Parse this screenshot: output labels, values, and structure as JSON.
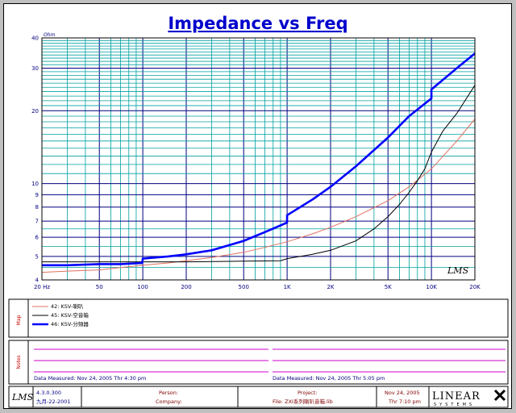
{
  "chart_data": {
    "type": "line",
    "title": "Impedance vs Freq",
    "y_unit": "Ohm",
    "x_scale": "log",
    "y_scale": "log",
    "xlim": [
      20,
      20000
    ],
    "ylim": [
      4,
      40
    ],
    "x_ticks": [
      {
        "v": 20,
        "label": "20 Hz"
      },
      {
        "v": 50,
        "label": "50"
      },
      {
        "v": 100,
        "label": "100"
      },
      {
        "v": 200,
        "label": "200"
      },
      {
        "v": 500,
        "label": "500"
      },
      {
        "v": 1000,
        "label": "1K"
      },
      {
        "v": 2000,
        "label": "2K"
      },
      {
        "v": 5000,
        "label": "5K"
      },
      {
        "v": 10000,
        "label": "10K"
      },
      {
        "v": 20000,
        "label": "20K"
      }
    ],
    "y_ticks": [
      {
        "v": 4,
        "label": "4"
      },
      {
        "v": 5,
        "label": "5"
      },
      {
        "v": 6,
        "label": "6"
      },
      {
        "v": 7,
        "label": "7"
      },
      {
        "v": 8,
        "label": "8"
      },
      {
        "v": 9,
        "label": "9"
      },
      {
        "v": 10,
        "label": "10"
      },
      {
        "v": 20,
        "label": "20"
      },
      {
        "v": 30,
        "label": "30"
      },
      {
        "v": 40,
        "label": "40"
      }
    ],
    "grid": true,
    "series": [
      {
        "name": "42: KSV-喇叭",
        "color": "#e07060",
        "x": [
          20,
          30,
          50,
          70,
          100,
          150,
          200,
          300,
          500,
          700,
          1000,
          1500,
          2000,
          3000,
          5000,
          7000,
          10000,
          15000,
          20000
        ],
        "y": [
          4.3,
          4.35,
          4.4,
          4.5,
          4.6,
          4.7,
          4.8,
          4.95,
          5.2,
          5.45,
          5.75,
          6.2,
          6.6,
          7.3,
          8.5,
          9.7,
          11.5,
          15.0,
          18.5
        ]
      },
      {
        "name": "45: KSV-空音箱",
        "color": "#000000",
        "x": [
          20,
          50,
          100,
          200,
          500,
          900,
          1000,
          1500,
          2000,
          3000,
          4000,
          5000,
          6000,
          7000,
          8000,
          9000,
          10000,
          12000,
          15000,
          20000
        ],
        "y": [
          4.75,
          4.75,
          4.75,
          4.75,
          4.78,
          4.8,
          4.9,
          5.1,
          5.3,
          5.8,
          6.5,
          7.3,
          8.2,
          9.2,
          10.3,
          11.5,
          13.5,
          16.5,
          19.5,
          25.5
        ]
      },
      {
        "name": "46: KSV-分頻器",
        "color": "#0000ff",
        "x": [
          20,
          30,
          50,
          70,
          99,
          100,
          150,
          200,
          300,
          500,
          700,
          999,
          1000,
          1500,
          2000,
          3000,
          5000,
          7000,
          9999,
          10000,
          15000,
          20000
        ],
        "y": [
          4.6,
          4.6,
          4.65,
          4.65,
          4.7,
          4.9,
          5.0,
          5.1,
          5.3,
          5.8,
          6.3,
          6.9,
          7.4,
          8.6,
          9.7,
          11.8,
          15.5,
          19.0,
          22.5,
          24.5,
          30.0,
          34.5
        ]
      }
    ]
  },
  "legend": {
    "section_label": "Map",
    "entries": [
      {
        "text": "42: KSV-喇叭"
      },
      {
        "text": "45: KSV-空音箱"
      },
      {
        "text": "46: KSV-分頻器"
      }
    ]
  },
  "notes": {
    "section_label": "Notes",
    "measured_left": "Data Measured: Nov 24, 2005  Thr  4:30 pm",
    "measured_right": "Data Measured: Nov 24, 2005  Thr  5:05 pm"
  },
  "footer": {
    "logo": "LMS",
    "version": "4.3.0.300",
    "date": "九月-22-2001",
    "person_label": "Person:",
    "company_label": "Company:",
    "project_label": "Project:",
    "file_label": "File: ZXI系列喇叭音箱.lib",
    "print_date": "Nov 24, 2005",
    "print_time": "Thr  7:10 pm",
    "brand": "LINEAR",
    "brand_sub": "SYSTEMS"
  },
  "watermark": "LMS",
  "colors": {
    "grid_major": "#000080",
    "grid_minor": "#00a0a0",
    "divider": "#cc00cc"
  }
}
